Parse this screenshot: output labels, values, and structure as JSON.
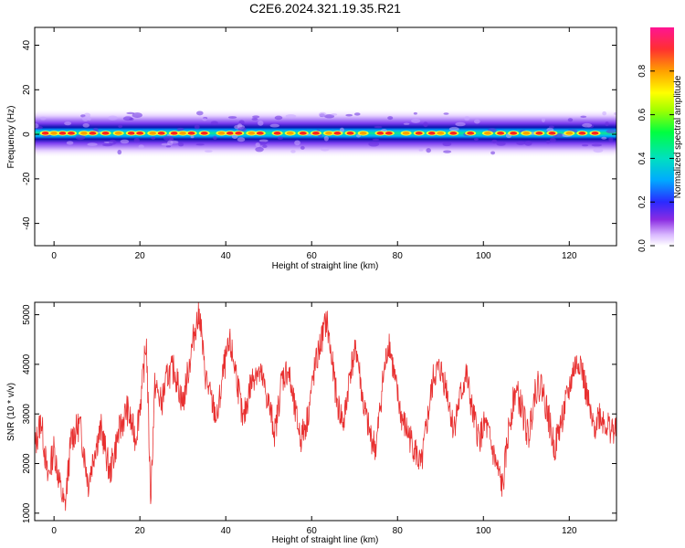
{
  "title": "C2E6.2024.321.19.35.R21",
  "chart_data": [
    {
      "type": "heatmap",
      "name": "spectrogram",
      "xlabel": "Height of straight line (km)",
      "ylabel": "Frequency (Hz)",
      "xlim": [
        -4.5,
        131
      ],
      "ylim": [
        -50,
        48
      ],
      "xticks": [
        0,
        20,
        40,
        60,
        80,
        100,
        120
      ],
      "yticks": [
        -40,
        -20,
        0,
        20,
        40
      ],
      "band_center_hz": 0.5,
      "band_halfwidth_hz": 5,
      "hot_spots_x": [
        -2,
        0,
        2,
        4,
        7,
        9,
        12,
        15,
        18,
        20,
        23,
        25,
        28,
        30,
        32,
        35,
        39,
        41,
        43,
        46,
        48,
        52,
        55,
        58,
        61,
        64,
        66,
        69,
        72,
        76,
        78,
        82,
        85,
        88,
        90,
        93,
        97,
        101,
        104,
        107,
        110,
        113,
        116,
        120,
        123,
        126
      ],
      "colorbar": {
        "label": "Normalized spectral amplitude",
        "ticks": [
          0.0,
          0.2,
          0.4,
          0.6,
          0.8
        ],
        "range": [
          0,
          1
        ]
      }
    },
    {
      "type": "line",
      "name": "snr",
      "xlabel": "Height of straight line (km)",
      "ylabel": "SNR (10 * v/v)",
      "xlim": [
        -4.5,
        131
      ],
      "ylim": [
        850,
        5250
      ],
      "xticks": [
        0,
        20,
        40,
        60,
        80,
        100,
        120
      ],
      "yticks": [
        1000,
        2000,
        3000,
        4000,
        5000
      ],
      "color": "#e83030",
      "x": [
        -4.5,
        -3,
        -1.5,
        0,
        1.5,
        2.5,
        4,
        6,
        8,
        9.5,
        11,
        13,
        15,
        17,
        19,
        20.5,
        21.5,
        22.5,
        23.5,
        25,
        26.5,
        28,
        30,
        31.5,
        33,
        34,
        35,
        36.5,
        38,
        39.5,
        41,
        42.5,
        44,
        45.5,
        47,
        48.5,
        50,
        51.5,
        53,
        54.5,
        56,
        57.5,
        59,
        60.5,
        62,
        63.5,
        64.5,
        66,
        67.5,
        69,
        70.5,
        72,
        73.5,
        75,
        76.5,
        78,
        79.5,
        81,
        82.5,
        84,
        85.5,
        87,
        88.5,
        90,
        91.5,
        93,
        94.5,
        96,
        97.5,
        99,
        100.5,
        102,
        103.5,
        104.5,
        106,
        107.5,
        109,
        110.5,
        112,
        113.5,
        115,
        116.5,
        118,
        119.5,
        121,
        122.5,
        124,
        125.5,
        127,
        128.5,
        131
      ],
      "y": [
        2300,
        2900,
        1700,
        2300,
        1500,
        1100,
        2500,
        2800,
        1600,
        2300,
        2700,
        1800,
        2600,
        3100,
        2500,
        3500,
        4500,
        1300,
        3600,
        3200,
        3800,
        3900,
        3200,
        4000,
        4800,
        5000,
        3900,
        3300,
        2900,
        3900,
        4400,
        3800,
        2800,
        3500,
        3900,
        3700,
        3200,
        2600,
        3700,
        3900,
        3100,
        2500,
        2900,
        3800,
        4400,
        4900,
        4200,
        3200,
        2800,
        3900,
        4300,
        3200,
        2600,
        2300,
        3600,
        4500,
        3600,
        2900,
        2600,
        2300,
        1900,
        2900,
        3800,
        3900,
        3500,
        2700,
        3300,
        3800,
        3000,
        2500,
        2800,
        2300,
        1800,
        1500,
        2800,
        3500,
        3100,
        2500,
        3500,
        3600,
        3000,
        2300,
        2800,
        3300,
        3900,
        4100,
        3400,
        2700,
        3000,
        2800,
        2600
      ]
    }
  ]
}
